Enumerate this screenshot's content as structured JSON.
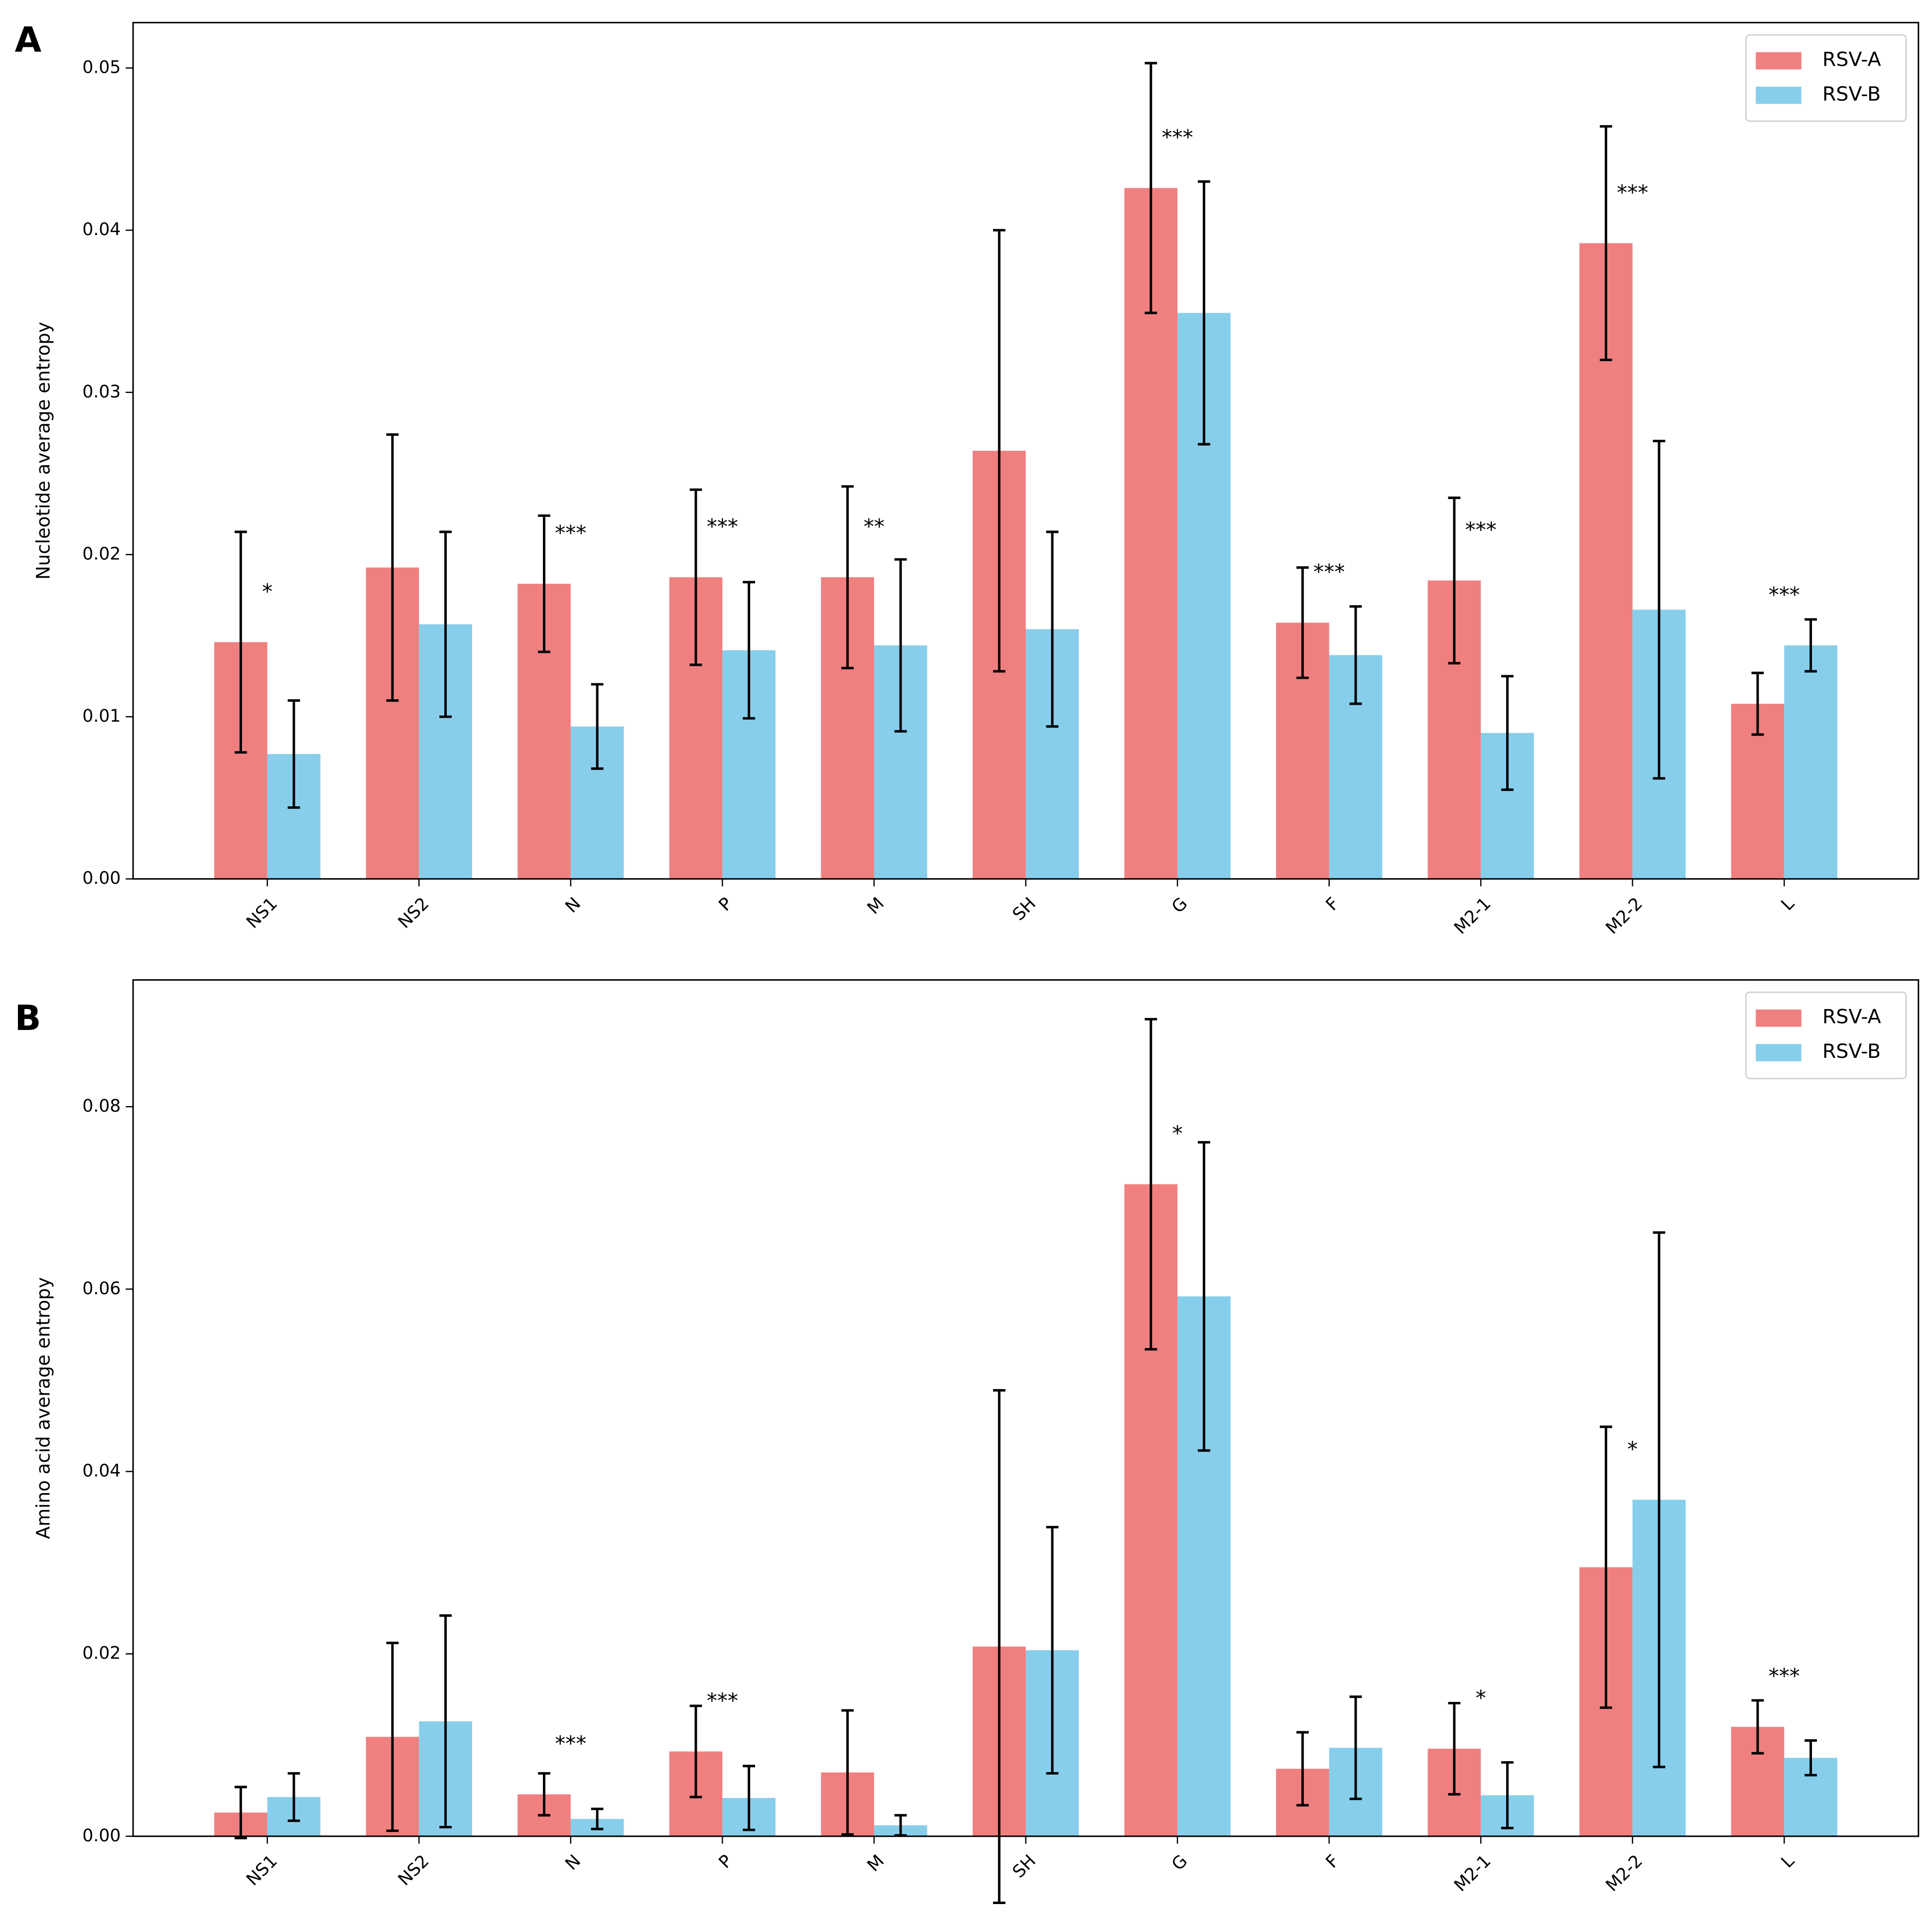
{
  "chart_data": [
    {
      "type": "bar",
      "panel_label": "A",
      "ylabel": "Nucleotide average entropy",
      "categories": [
        "NS1",
        "NS2",
        "N",
        "P",
        "M",
        "SH",
        "G",
        "F",
        "M2-1",
        "M2-2",
        "L"
      ],
      "series": [
        {
          "name": "RSV-A",
          "color": "#f08080",
          "values": [
            0.0146,
            0.0192,
            0.0182,
            0.0186,
            0.0186,
            0.0264,
            0.0426,
            0.0158,
            0.0184,
            0.0392,
            0.0108
          ],
          "yerr": [
            0.0068,
            0.0082,
            0.0042,
            0.0054,
            0.0056,
            0.0136,
            0.0077,
            0.0034,
            0.0051,
            0.0072,
            0.0019
          ]
        },
        {
          "name": "RSV-B",
          "color": "#87ceeb",
          "values": [
            0.0077,
            0.0157,
            0.0094,
            0.0141,
            0.0144,
            0.0154,
            0.0349,
            0.0138,
            0.009,
            0.0166,
            0.0144
          ],
          "yerr": [
            0.0033,
            0.0057,
            0.0026,
            0.0042,
            0.0053,
            0.006,
            0.0081,
            0.003,
            0.0035,
            0.0104,
            0.0016
          ]
        }
      ],
      "significance": [
        "*",
        null,
        "***",
        "***",
        "**",
        null,
        "***",
        "***",
        "***",
        "***",
        "***"
      ],
      "ylim": [
        0,
        0.0528
      ],
      "yticks": [
        {
          "value": 0,
          "label": "0.00"
        },
        {
          "value": 0.01,
          "label": "0.01"
        },
        {
          "value": 0.02,
          "label": "0.02"
        },
        {
          "value": 0.03,
          "label": "0.03"
        },
        {
          "value": 0.04,
          "label": "0.04"
        },
        {
          "value": 0.05,
          "label": "0.05"
        }
      ],
      "legend": "upper right"
    },
    {
      "type": "bar",
      "panel_label": "B",
      "ylabel": "Amino acid average entropy",
      "categories": [
        "NS1",
        "NS2",
        "N",
        "P",
        "M",
        "SH",
        "G",
        "F",
        "M2-1",
        "M2-2",
        "L"
      ],
      "series": [
        {
          "name": "RSV-A",
          "color": "#f08080",
          "values": [
            0.0026,
            0.0109,
            0.0046,
            0.0093,
            0.007,
            0.0208,
            0.0715,
            0.0074,
            0.0096,
            0.0295,
            0.012
          ],
          "yerr": [
            0.0028,
            0.0103,
            0.0023,
            0.005,
            0.0068,
            0.0281,
            0.0181,
            0.004,
            0.005,
            0.0154,
            0.0029
          ]
        },
        {
          "name": "RSV-B",
          "color": "#87ceeb",
          "values": [
            0.0043,
            0.0126,
            0.0019,
            0.0042,
            0.0012,
            0.0204,
            0.0592,
            0.0097,
            0.0045,
            0.0369,
            0.0086
          ],
          "yerr": [
            0.0026,
            0.0116,
            0.0011,
            0.0035,
            0.0011,
            0.0135,
            0.0169,
            0.0056,
            0.0036,
            0.0293,
            0.0019
          ]
        }
      ],
      "significance": [
        null,
        null,
        "***",
        "***",
        null,
        null,
        "*",
        null,
        "*",
        "*",
        "***"
      ],
      "ylim": [
        0,
        0.0939
      ],
      "yticks": [
        {
          "value": 0,
          "label": "0.00"
        },
        {
          "value": 0.02,
          "label": "0.02"
        },
        {
          "value": 0.04,
          "label": "0.04"
        },
        {
          "value": 0.06,
          "label": "0.06"
        },
        {
          "value": 0.08,
          "label": "0.08"
        }
      ],
      "legend": "upper right"
    }
  ]
}
